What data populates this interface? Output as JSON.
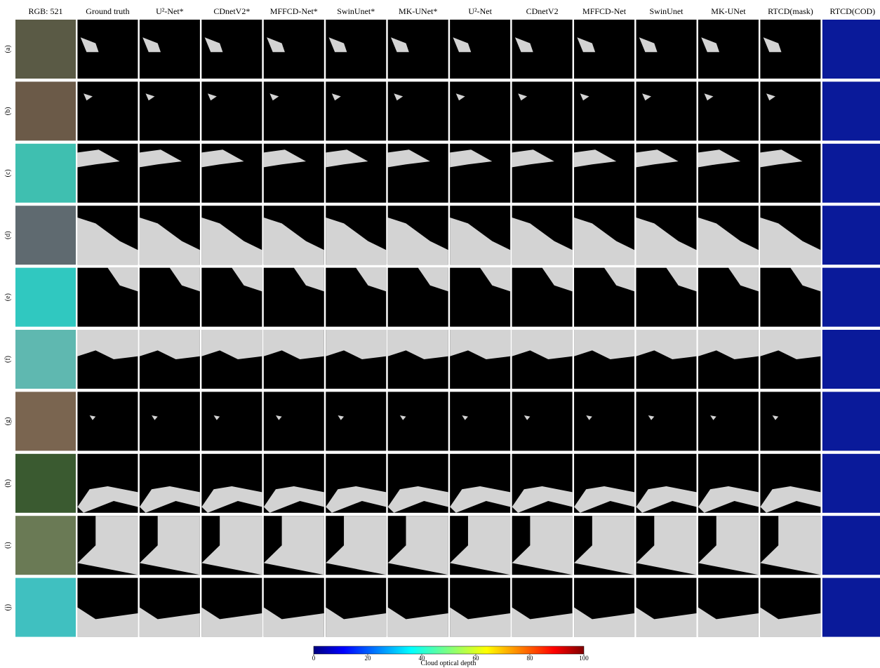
{
  "columns": [
    "RGB: 521",
    "Ground truth",
    "U²-Net*",
    "CDnetV2*",
    "MFFCD-Net*",
    "SwinUnet*",
    "MK-UNet*",
    "U²-Net",
    "CDnetV2",
    "MFFCD-Net",
    "SwinUnet",
    "MK-UNet",
    "RTCD(mask)",
    "RTCD(COD)"
  ],
  "rows": [
    "(a)",
    "(b)",
    "(c)",
    "(d)",
    "(e)",
    "(f)",
    "(g)",
    "(h)",
    "(i)",
    "(j)"
  ],
  "colorbar": {
    "label": "Cloud optical depth",
    "lim": [
      0,
      100
    ],
    "ticks": [
      0,
      20,
      40,
      60,
      80,
      100
    ]
  }
}
